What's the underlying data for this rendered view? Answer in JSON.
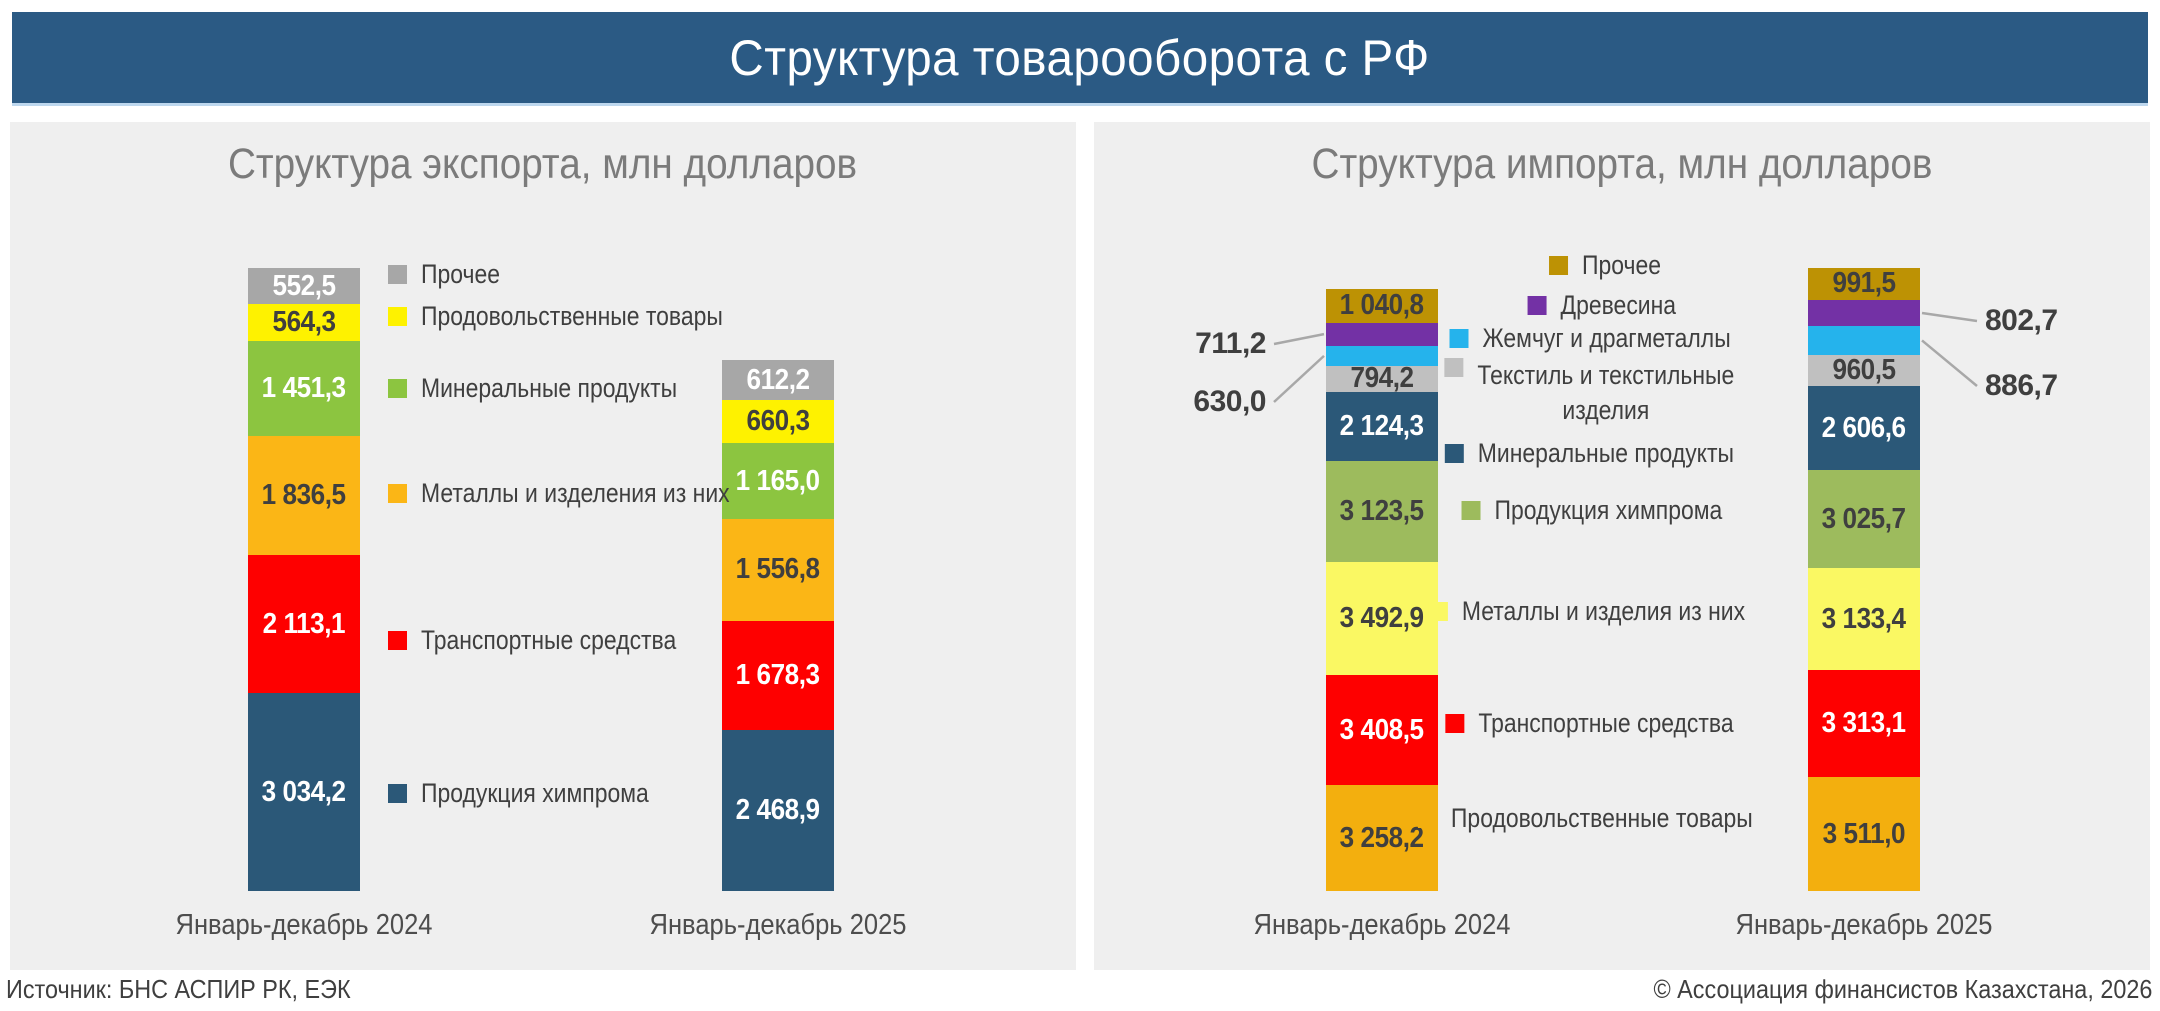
{
  "page": {
    "banner_title": "Структура товарооборота с РФ",
    "source": "Источник: БНС АСПИР РК, ЕЭК",
    "copyright": "© Ассоциация финансистов Казахстана, 2026",
    "colors": {
      "banner_bg": "#2B5A84",
      "panel_bg": "#EFEFEF",
      "title_text": "#7B7B7B",
      "callout_line": "#A8A8A8"
    }
  },
  "chart_data": [
    {
      "type": "bar",
      "stacked": true,
      "title": "Структура экспорта, млн долларов",
      "unit": "млн долларов",
      "legend_position": "between-bars-left-aligned",
      "categories": [
        "Январь-декабрь 2024",
        "Январь-декабрь 2025"
      ],
      "totals": [
        9551.9,
        8141.5
      ],
      "series": [
        {
          "name": "Прочее",
          "color": "#A7A7A7",
          "text_color": "#FFFFFF",
          "values": [
            552.5,
            612.2
          ],
          "labels": [
            "552,5",
            "612,2"
          ]
        },
        {
          "name": "Продовольственные товары",
          "color": "#FEF200",
          "text_color": "#3F3F3F",
          "values": [
            564.3,
            660.3
          ],
          "labels": [
            "564,3",
            "660,3"
          ]
        },
        {
          "name": "Минеральные продукты",
          "color": "#8CC540",
          "text_color": "#FFFFFF",
          "values": [
            1451.3,
            1165.0
          ],
          "labels": [
            "1 451,3",
            "1 165,0"
          ]
        },
        {
          "name": "Металлы и изделения из них",
          "color": "#FBB616",
          "text_color": "#3F3F3F",
          "values": [
            1836.5,
            1556.8
          ],
          "labels": [
            "1 836,5",
            "1 556,8"
          ]
        },
        {
          "name": "Транспортные средства",
          "color": "#FE0000",
          "text_color": "#FFFFFF",
          "values": [
            2113.1,
            1678.3
          ],
          "labels": [
            "2 113,1",
            "1 678,3"
          ]
        },
        {
          "name": "Продукция химпрома",
          "color": "#2B5878",
          "text_color": "#FFFFFF",
          "values": [
            3034.2,
            2468.9
          ],
          "labels": [
            "3 034,2",
            "2 468,9"
          ]
        }
      ]
    },
    {
      "type": "bar",
      "stacked": true,
      "title": "Структура импорта, млн долларов",
      "unit": "млн долларов",
      "legend_position": "between-bars-centered",
      "categories": [
        "Январь-декабрь 2024",
        "Январь-декабрь 2025"
      ],
      "totals": [
        18583.6,
        19231.2
      ],
      "series": [
        {
          "name": "Прочее",
          "color": "#BD9204",
          "text_color": "#3F3F3F",
          "values": [
            1040.8,
            991.5
          ],
          "labels": [
            "1 040,8",
            "991,5"
          ]
        },
        {
          "name": "Древесина",
          "color": "#7331A5",
          "text_color": "#3F3F3F",
          "callout": true,
          "values": [
            711.2,
            802.7
          ],
          "labels": [
            "711,2",
            "802,7"
          ]
        },
        {
          "name": "Жемчуг и драгметаллы",
          "color": "#25B3EC",
          "text_color": "#3F3F3F",
          "callout": true,
          "values": [
            630.0,
            886.7
          ],
          "labels": [
            "630,0",
            "886,7"
          ]
        },
        {
          "name": "Текстиль и текстильные изделия",
          "name_lines": [
            "Текстиль и текстильные",
            "изделия"
          ],
          "color": "#C0C0C0",
          "text_color": "#3F3F3F",
          "values": [
            794.2,
            960.5
          ],
          "labels": [
            "794,2",
            "960,5"
          ]
        },
        {
          "name": "Минеральные продукты",
          "color": "#2B5878",
          "text_color": "#FFFFFF",
          "values": [
            2124.3,
            2606.6
          ],
          "labels": [
            "2 124,3",
            "2 606,6"
          ]
        },
        {
          "name": "Продукция химпрома",
          "color": "#9DBB5D",
          "text_color": "#3F3F3F",
          "values": [
            3123.5,
            3025.7
          ],
          "labels": [
            "3 123,5",
            "3 025,7"
          ]
        },
        {
          "name": "Металлы и изделия из них",
          "color": "#FAF863",
          "text_color": "#3F3F3F",
          "values": [
            3492.9,
            3133.4
          ],
          "labels": [
            "3 492,9",
            "3 133,4"
          ]
        },
        {
          "name": "Транспортные средства",
          "color": "#FE0000",
          "text_color": "#FFFFFF",
          "values": [
            3408.5,
            3313.1
          ],
          "labels": [
            "3 408,5",
            "3 313,1"
          ]
        },
        {
          "name": "Продовольственные товары",
          "color": "#F3AF0E",
          "text_color": "#3F3F3F",
          "values": [
            3258.2,
            3511.0
          ],
          "labels": [
            "3 258,2",
            "3 511,0"
          ]
        }
      ]
    }
  ]
}
